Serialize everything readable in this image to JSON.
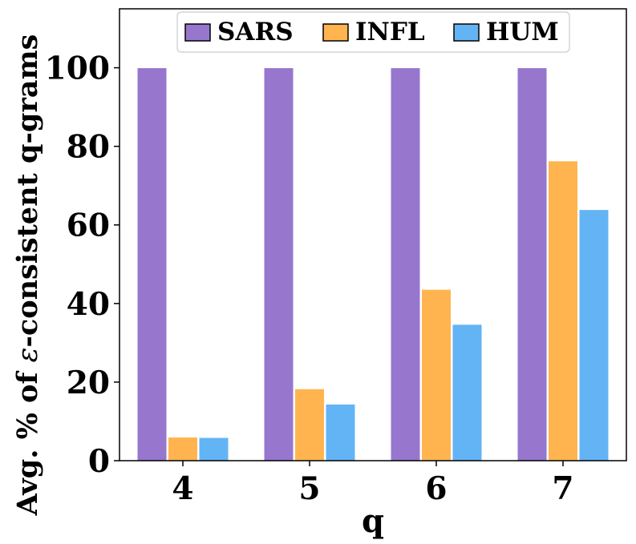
{
  "chart_data": {
    "type": "bar",
    "xlabel": "q",
    "ylabel_prefix": "Avg. % of ",
    "ylabel_symbol": "ε",
    "ylabel_suffix": "-consistent q-grams",
    "categories": [
      "4",
      "5",
      "6",
      "7"
    ],
    "ylim": [
      0,
      115
    ],
    "yticks": [
      0,
      20,
      40,
      60,
      80,
      100
    ],
    "grid": false,
    "legend_position": "top-center",
    "series": [
      {
        "name": "SARS",
        "color": "#9677CD",
        "values": [
          100,
          100,
          100,
          100
        ]
      },
      {
        "name": "INFL",
        "color": "#FFB44F",
        "values": [
          6,
          18.3,
          43.6,
          76.3
        ]
      },
      {
        "name": "HUM",
        "color": "#63B4F5",
        "values": [
          5.9,
          14.4,
          34.7,
          63.9
        ]
      }
    ]
  }
}
